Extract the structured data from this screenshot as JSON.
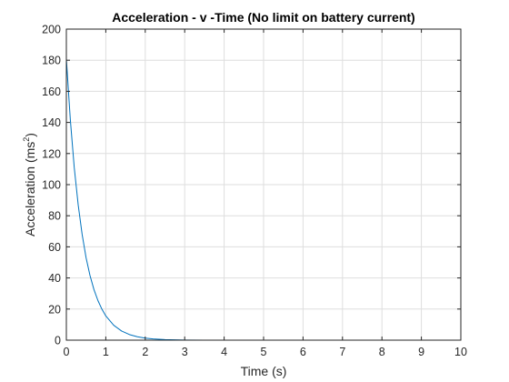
{
  "chart_data": {
    "type": "line",
    "title": "Acceleration - v -Time (No limit on battery current)",
    "xlabel": "Time (s)",
    "ylabel": {
      "base": "Acceleration (ms",
      "sup": "2",
      "close": ")"
    },
    "xlim": [
      0,
      10
    ],
    "ylim": [
      0,
      200
    ],
    "xticks": [
      "0",
      "1",
      "2",
      "3",
      "4",
      "5",
      "6",
      "7",
      "8",
      "9",
      "10"
    ],
    "yticks": [
      "0",
      "20",
      "40",
      "60",
      "80",
      "100",
      "120",
      "140",
      "160",
      "180",
      "200"
    ],
    "grid": true,
    "series": [
      {
        "color": "#0072bd",
        "x": [
          0,
          0,
          0.1,
          0.2,
          0.3,
          0.4,
          0.5,
          0.6,
          0.7,
          0.8,
          0.9,
          1.0,
          1.2,
          1.4,
          1.6,
          1.8,
          2.0,
          2.2,
          2.5,
          3.0,
          3.5,
          4,
          5,
          6,
          7,
          8,
          9,
          10
        ],
        "y": [
          0,
          181,
          142,
          111,
          87,
          68,
          53,
          41.5,
          32.5,
          25.5,
          20,
          15.6,
          9.6,
          5.9,
          3.6,
          2.2,
          1.3,
          0.8,
          0.4,
          0.1,
          0.03,
          0,
          0,
          0,
          0,
          0,
          0,
          0
        ]
      }
    ]
  }
}
